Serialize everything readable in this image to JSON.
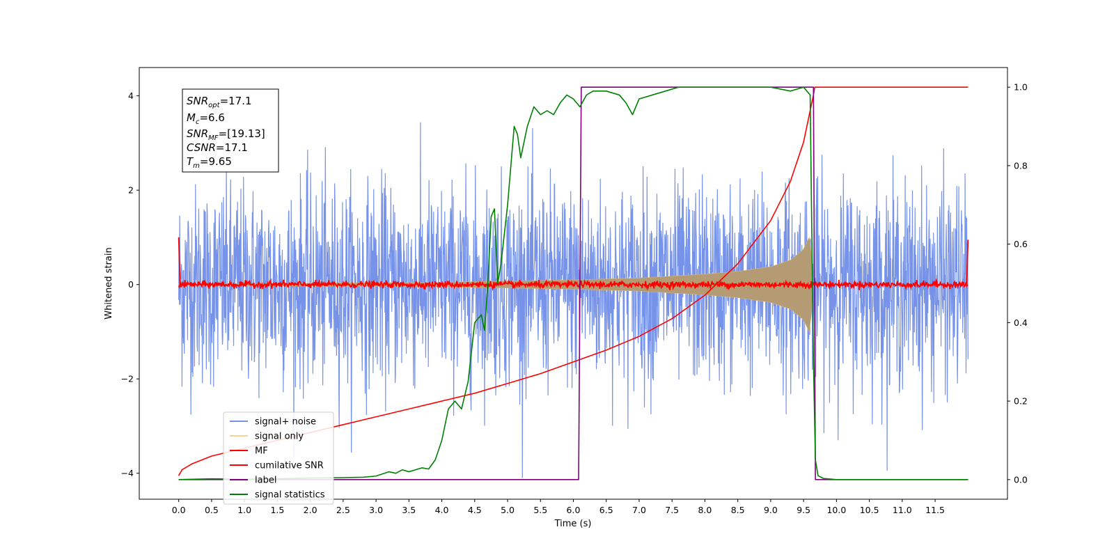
{
  "chart_data": {
    "type": "line",
    "xlabel": "Time (s)",
    "ylabel": "Whitened strain",
    "xlim": [
      -0.6,
      12.6
    ],
    "ylim": [
      -4.55,
      4.6
    ],
    "y2lim": [
      -0.05,
      1.05
    ],
    "x_ticks": [
      0.0,
      0.5,
      1.0,
      1.5,
      2.0,
      2.5,
      3.0,
      3.5,
      4.0,
      4.5,
      5.0,
      5.5,
      6.0,
      6.5,
      7.0,
      7.5,
      8.0,
      8.5,
      9.0,
      9.5,
      10.0,
      10.5,
      11.0,
      11.5
    ],
    "x_tick_labels": [
      "0.0",
      "0.5",
      "1.0",
      "1.5",
      "2.0",
      "2.5",
      "3.0",
      "3.5",
      "4.0",
      "4.5",
      "5.0",
      "5.5",
      "6.0",
      "6.5",
      "7.0",
      "7.5",
      "8.0",
      "8.5",
      "9.0",
      "9.5",
      "10.0",
      "10.5",
      "11.0",
      "11.5"
    ],
    "y_ticks": [
      -4,
      -2,
      0,
      2,
      4
    ],
    "y_tick_labels": [
      "−4",
      "−2",
      "0",
      "2",
      "4"
    ],
    "y2_ticks": [
      0.0,
      0.2,
      0.4,
      0.6,
      0.8,
      1.0
    ],
    "y2_tick_labels": [
      "0.0",
      "0.2",
      "0.4",
      "0.6",
      "0.8",
      "1.0"
    ],
    "grid": false,
    "legend_position": "lower-left",
    "annotation": {
      "lines": [
        {
          "name": "SNR",
          "sub": "opt",
          "value": "=17.1"
        },
        {
          "name": "M",
          "sub": "c",
          "value": "=6.6"
        },
        {
          "name": "SNR",
          "sub": "MF",
          "value": "=[19.13]"
        },
        {
          "name": "CSNR",
          "sub": "",
          "value": "=17.1"
        },
        {
          "name": "T",
          "sub": "m",
          "value": "=9.65"
        }
      ]
    },
    "series": [
      {
        "name": "signal+ noise",
        "color": "#4169e1",
        "axis": "left",
        "kind": "noise",
        "t_range": [
          0,
          12
        ],
        "std": 1.05
      },
      {
        "name": "signal only",
        "color": "#f5c36b",
        "axis": "left",
        "kind": "chirp",
        "t_range": [
          0,
          9.65
        ],
        "envelope": [
          [
            0,
            0.02
          ],
          [
            2,
            0.03
          ],
          [
            4,
            0.05
          ],
          [
            6,
            0.1
          ],
          [
            7,
            0.14
          ],
          [
            8,
            0.22
          ],
          [
            8.5,
            0.28
          ],
          [
            9.0,
            0.38
          ],
          [
            9.3,
            0.52
          ],
          [
            9.5,
            0.75
          ],
          [
            9.6,
            1.05
          ],
          [
            9.65,
            0.0
          ]
        ]
      },
      {
        "name": "MF",
        "color": "#ff0000",
        "axis": "left",
        "kind": "noise_small",
        "t_range": [
          0,
          12
        ],
        "std": 0.035
      },
      {
        "name": "cumilative SNR",
        "color": "#ff0000",
        "axis": "right",
        "x": [
          0,
          0.05,
          0.2,
          0.5,
          1.0,
          1.5,
          2.0,
          2.5,
          3.0,
          3.5,
          4.0,
          4.5,
          5.0,
          5.5,
          6.0,
          6.5,
          7.0,
          7.5,
          8.0,
          8.5,
          9.0,
          9.3,
          9.5,
          9.65,
          9.67,
          12.0
        ],
        "y": [
          0.01,
          0.025,
          0.04,
          0.06,
          0.08,
          0.1,
          0.12,
          0.14,
          0.16,
          0.18,
          0.2,
          0.22,
          0.245,
          0.27,
          0.3,
          0.33,
          0.365,
          0.41,
          0.47,
          0.55,
          0.66,
          0.76,
          0.86,
          0.98,
          1.0,
          1.0
        ]
      },
      {
        "name": "label",
        "color": "#800080",
        "axis": "right",
        "x": [
          0,
          6.08,
          6.12,
          9.58,
          9.65,
          9.68,
          12.0
        ],
        "y": [
          0,
          0,
          1,
          1,
          1,
          0,
          0
        ]
      },
      {
        "name": "signal statistics",
        "color": "#008000",
        "axis": "right",
        "x": [
          0,
          0.5,
          1.0,
          1.5,
          2.0,
          2.5,
          2.8,
          3.0,
          3.2,
          3.3,
          3.4,
          3.5,
          3.6,
          3.7,
          3.8,
          3.9,
          4.0,
          4.1,
          4.2,
          4.3,
          4.4,
          4.5,
          4.55,
          4.6,
          4.65,
          4.7,
          4.75,
          4.8,
          4.85,
          4.9,
          5.0,
          5.05,
          5.1,
          5.15,
          5.2,
          5.3,
          5.4,
          5.5,
          5.6,
          5.7,
          5.8,
          5.9,
          6.0,
          6.1,
          6.2,
          6.3,
          6.5,
          6.7,
          6.8,
          6.9,
          7.0,
          7.2,
          7.4,
          7.6,
          7.8,
          8.0,
          8.5,
          9.0,
          9.3,
          9.5,
          9.55,
          9.6,
          9.62,
          9.65,
          9.68,
          9.72,
          9.8,
          10.0,
          11.0,
          12.0
        ],
        "y": [
          0,
          0.002,
          0.001,
          0.002,
          0.004,
          0.005,
          0.006,
          0.009,
          0.02,
          0.016,
          0.025,
          0.02,
          0.025,
          0.03,
          0.027,
          0.05,
          0.1,
          0.18,
          0.2,
          0.18,
          0.25,
          0.4,
          0.41,
          0.42,
          0.38,
          0.5,
          0.67,
          0.69,
          0.5,
          0.55,
          0.7,
          0.8,
          0.9,
          0.88,
          0.82,
          0.9,
          0.95,
          0.93,
          0.94,
          0.93,
          0.96,
          0.98,
          0.97,
          0.95,
          0.98,
          0.99,
          0.99,
          0.98,
          0.96,
          0.93,
          0.97,
          0.98,
          0.99,
          1.0,
          1.0,
          1.0,
          1.0,
          1.0,
          0.99,
          1.0,
          0.99,
          0.98,
          0.7,
          0.3,
          0.05,
          0.01,
          0.003,
          0.0,
          0.0,
          0.0
        ]
      }
    ]
  }
}
